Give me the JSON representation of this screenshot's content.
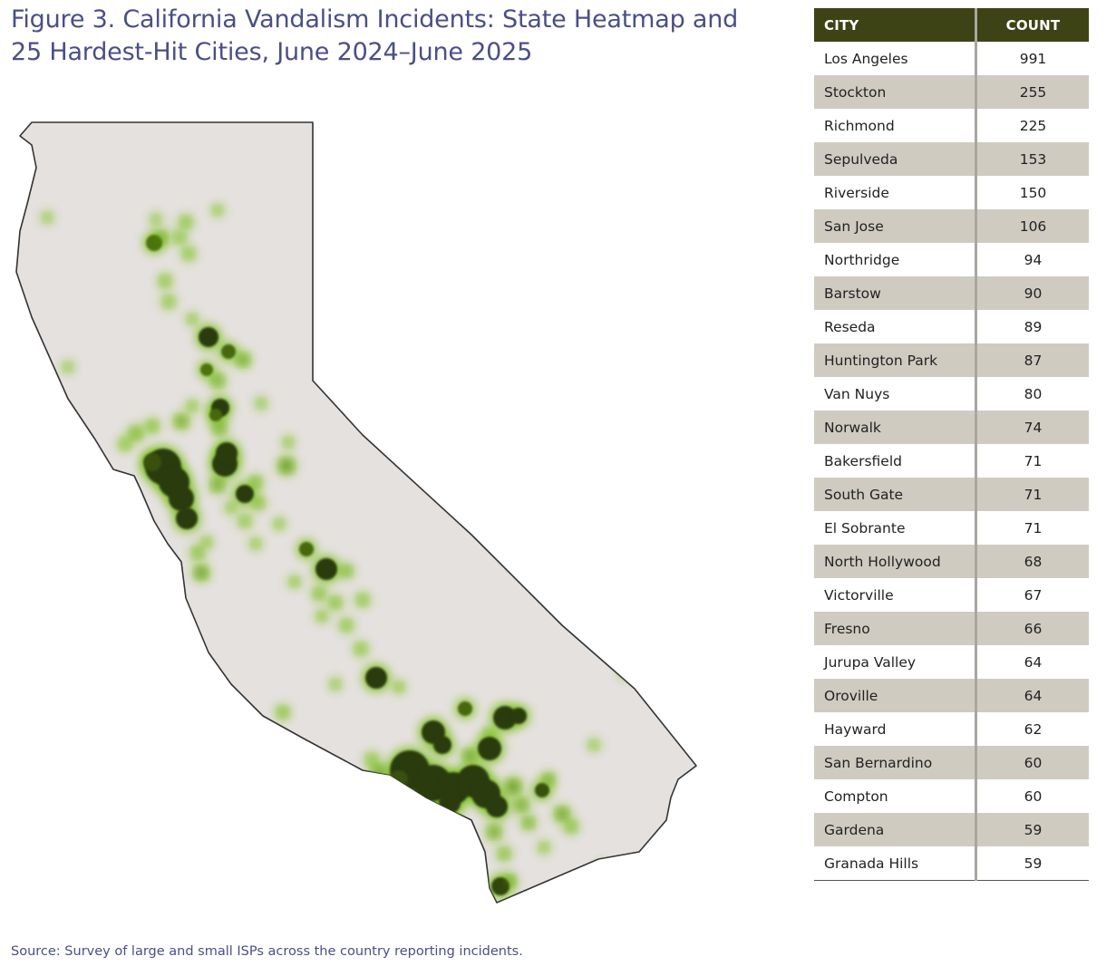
{
  "figure": {
    "title_line1": "Figure 3.  California Vandalism Incidents: State Heatmap and",
    "title_line2": "25 Hardest-Hit Cities, June 2024–June 2025",
    "source": "Source: Survey of large and small ISPs across the country reporting incidents."
  },
  "colors": {
    "state_fill": "#e5e1df",
    "state_stroke": "#333333",
    "hot_light": "#7bc21a",
    "hot_dark": "#2c3a0a",
    "header_bg": "#3d4315",
    "row_shade": "#cfcbc1",
    "title_color": "#4a4f86"
  },
  "chart_data": [
    {
      "type": "heatmap",
      "region": "California",
      "note_values": "intensity is relative (0-1) as shown by color saturation"
    },
    {
      "type": "table",
      "columns": [
        "CITY",
        "COUNT"
      ],
      "rows": [
        {
          "city": "Los Angeles",
          "count": "991"
        },
        {
          "city": "Stockton",
          "count": "255"
        },
        {
          "city": "Richmond",
          "count": "225"
        },
        {
          "city": "Sepulveda",
          "count": "153"
        },
        {
          "city": "Riverside",
          "count": "150"
        },
        {
          "city": "San Jose",
          "count": "106"
        },
        {
          "city": "Northridge",
          "count": "94"
        },
        {
          "city": "Barstow",
          "count": "90"
        },
        {
          "city": "Reseda",
          "count": "89"
        },
        {
          "city": "Huntington Park",
          "count": "87"
        },
        {
          "city": "Van Nuys",
          "count": "80"
        },
        {
          "city": "Norwalk",
          "count": "74"
        },
        {
          "city": "Bakersfield",
          "count": "71"
        },
        {
          "city": "South Gate",
          "count": "71"
        },
        {
          "city": "El Sobrante",
          "count": "71"
        },
        {
          "city": "North Hollywood",
          "count": "68"
        },
        {
          "city": "Victorville",
          "count": "67"
        },
        {
          "city": "Fresno",
          "count": "66"
        },
        {
          "city": "Jurupa Valley",
          "count": "64"
        },
        {
          "city": "Oroville",
          "count": "64"
        },
        {
          "city": "Hayward",
          "count": "62"
        },
        {
          "city": "San Bernardino",
          "count": "60"
        },
        {
          "city": "Compton",
          "count": "60"
        },
        {
          "city": "Gardena",
          "count": "59"
        },
        {
          "city": "Granada Hills",
          "count": "59"
        }
      ]
    }
  ]
}
